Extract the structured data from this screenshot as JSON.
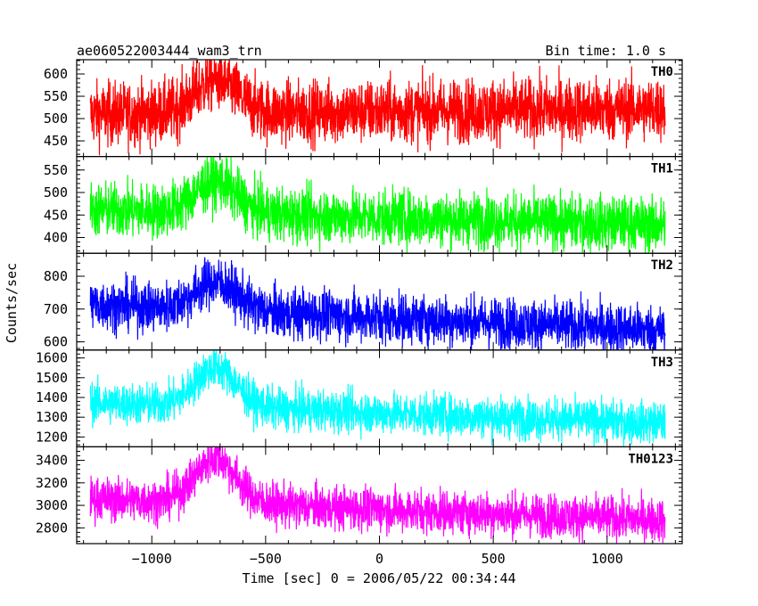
{
  "chart_data": {
    "type": "line",
    "title": "ae060522003444_wam3_trn",
    "subtitle": "Bin time: 1.0 s",
    "xlabel": "Time [sec] 0 = 2006/05/22 00:34:44",
    "ylabel": "Counts/sec",
    "xlim": [
      -1330,
      1330
    ],
    "xticks": [
      -1000,
      -500,
      0,
      500,
      1000
    ],
    "xtick_labels": [
      "−1000",
      "−500",
      "0",
      "500",
      "1000"
    ],
    "x_start": -1270,
    "x_end": 1255,
    "peak_center": -720,
    "peak_width": 90,
    "series": [
      {
        "name": "TH0",
        "color": "#ff0000",
        "ylim": [
          415,
          632
        ],
        "yticks": [
          450,
          500,
          550,
          600
        ],
        "baseline_start": 510,
        "baseline_end": 522,
        "peak_height": 75,
        "noise": 35
      },
      {
        "name": "TH1",
        "color": "#00ff00",
        "ylim": [
          365,
          580
        ],
        "yticks": [
          400,
          450,
          500,
          550
        ],
        "baseline_start": 462,
        "baseline_end": 428,
        "peak_height": 70,
        "noise": 30
      },
      {
        "name": "TH2",
        "color": "#0000ff",
        "ylim": [
          575,
          870
        ],
        "yticks": [
          600,
          700,
          800
        ],
        "baseline_start": 715,
        "baseline_end": 635,
        "peak_height": 85,
        "noise": 38
      },
      {
        "name": "TH3",
        "color": "#00ffff",
        "ylim": [
          1150,
          1640
        ],
        "yticks": [
          1200,
          1300,
          1400,
          1500,
          1600
        ],
        "baseline_start": 1375,
        "baseline_end": 1270,
        "peak_height": 200,
        "noise": 52
      },
      {
        "name": "TH0123",
        "color": "#ff00ff",
        "ylim": [
          2660,
          3520
        ],
        "yticks": [
          2800,
          3000,
          3200,
          3400
        ],
        "baseline_start": 3060,
        "baseline_end": 2870,
        "peak_height": 400,
        "noise": 95
      }
    ]
  }
}
